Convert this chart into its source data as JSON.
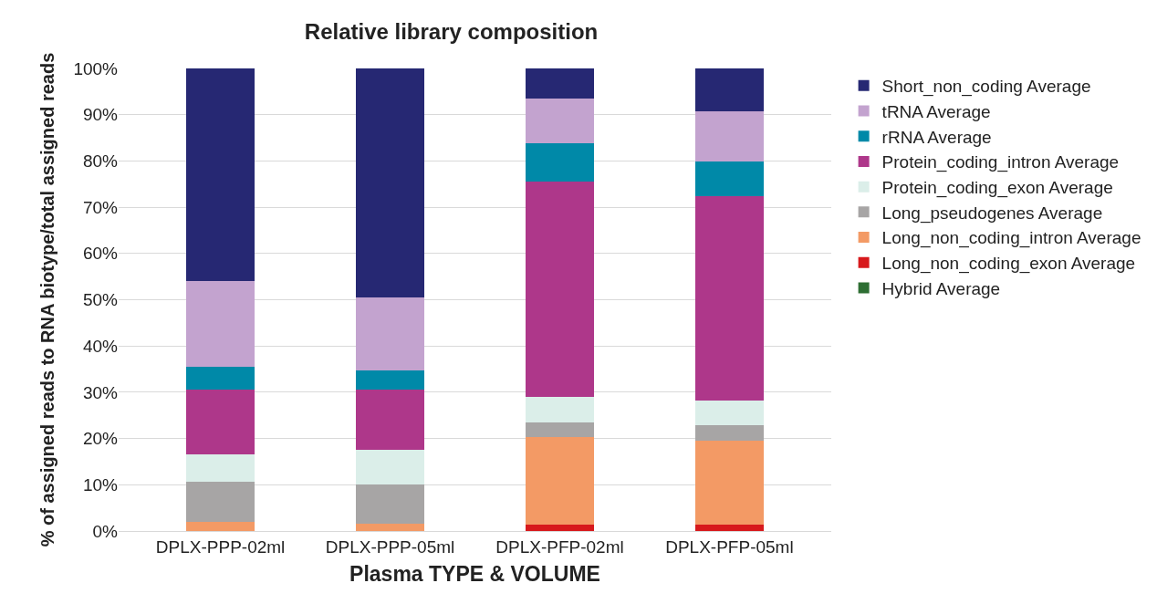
{
  "chart_data": {
    "type": "bar",
    "stacked": true,
    "title": "Relative library composition",
    "xlabel": "Plasma TYPE & VOLUME",
    "ylabel": "% of assigned reads to RNA biotype/total assigned reads",
    "categories": [
      "DPLX-PPP-02ml",
      "DPLX-PPP-05ml",
      "DPLX-PFP-02ml",
      "DPLX-PFP-05ml"
    ],
    "series": [
      {
        "name": "Hybrid Average",
        "color": "#2e6e33",
        "values": [
          0,
          0,
          0,
          0
        ]
      },
      {
        "name": "Long_non_coding_exon Average",
        "color": "#d7191c",
        "values": [
          0,
          0,
          1.4,
          1.4
        ]
      },
      {
        "name": "Long_non_coding_intron Average",
        "color": "#f39a65",
        "values": [
          1.9,
          1.5,
          18.9,
          18.1
        ]
      },
      {
        "name": "Long_pseudogenes Average",
        "color": "#a7a5a5",
        "values": [
          8.7,
          8.5,
          3.2,
          3.3
        ]
      },
      {
        "name": "Protein_coding_exon Average",
        "color": "#dbeee9",
        "values": [
          6.0,
          7.5,
          5.5,
          5.5
        ]
      },
      {
        "name": "Protein_coding_intron Average",
        "color": "#ae378a",
        "values": [
          14.0,
          13.1,
          46.6,
          44.1
        ]
      },
      {
        "name": "rRNA Average",
        "color": "#0089a8",
        "values": [
          4.9,
          4.1,
          8.2,
          7.4
        ]
      },
      {
        "name": "tRNA Average",
        "color": "#c3a3cf",
        "values": [
          18.5,
          15.7,
          9.6,
          11.0
        ]
      },
      {
        "name": "Short_non_coding Average",
        "color": "#262873",
        "values": [
          46.0,
          49.6,
          6.6,
          9.2
        ]
      }
    ],
    "ylim": [
      0,
      100
    ],
    "yticks": [
      {
        "value": 0,
        "label": "0%"
      },
      {
        "value": 10,
        "label": "10%"
      },
      {
        "value": 20,
        "label": "20%"
      },
      {
        "value": 30,
        "label": "30%"
      },
      {
        "value": 40,
        "label": "40%"
      },
      {
        "value": 50,
        "label": "50%"
      },
      {
        "value": 60,
        "label": "60%"
      },
      {
        "value": 70,
        "label": "70%"
      },
      {
        "value": 80,
        "label": "80%"
      },
      {
        "value": 90,
        "label": "90%"
      },
      {
        "value": 100,
        "label": "100%"
      }
    ],
    "grid": "y",
    "legend": "right"
  }
}
